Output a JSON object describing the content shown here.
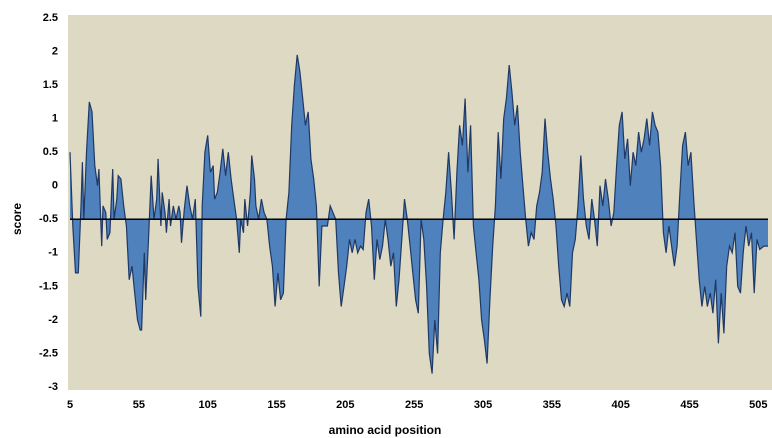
{
  "chart_data": {
    "type": "area",
    "xlabel": "amino acid position",
    "ylabel": "score",
    "baseline": -0.5,
    "color": "#4f81bd",
    "line_color": "#1f3864",
    "background": "#ddd9c3",
    "xlim": [
      5,
      512
    ],
    "xticks": [
      5,
      55,
      105,
      155,
      205,
      255,
      305,
      355,
      405,
      455,
      505
    ],
    "ylim": [
      -3,
      2.5
    ],
    "yticks": [
      -3,
      -2.5,
      -2,
      -1.5,
      -1,
      -0.5,
      0,
      0.5,
      1,
      1.5,
      2,
      2.5
    ],
    "x": [
      5,
      7,
      9,
      11,
      13,
      14,
      15,
      17,
      19,
      21,
      23,
      25,
      26,
      28,
      29,
      31,
      32,
      34,
      36,
      37,
      39,
      40,
      42,
      44,
      46,
      48,
      50,
      52,
      54,
      56,
      57,
      59,
      60,
      62,
      64,
      66,
      68,
      69,
      71,
      72,
      74,
      75,
      77,
      78,
      80,
      82,
      84,
      85,
      86,
      88,
      90,
      92,
      94,
      96,
      98,
      100,
      101,
      103,
      105,
      107,
      109,
      110,
      112,
      114,
      116,
      118,
      120,
      122,
      124,
      126,
      128,
      129,
      131,
      132,
      134,
      136,
      137,
      139,
      140,
      142,
      144,
      146,
      148,
      150,
      152,
      154,
      156,
      158,
      160,
      162,
      164,
      166,
      168,
      170,
      172,
      174,
      176,
      178,
      180,
      182,
      184,
      186,
      188,
      190,
      192,
      194,
      196,
      198,
      200,
      202,
      204,
      206,
      208,
      210,
      212,
      214,
      216,
      218,
      220,
      222,
      224,
      226,
      228,
      230,
      232,
      234,
      236,
      238,
      240,
      242,
      244,
      246,
      248,
      250,
      252,
      254,
      256,
      258,
      260,
      262,
      264,
      266,
      268,
      270,
      272,
      274,
      276,
      278,
      280,
      282,
      284,
      286,
      288,
      290,
      292,
      294,
      296,
      298,
      300,
      302,
      304,
      306,
      308,
      310,
      312,
      314,
      316,
      318,
      320,
      322,
      324,
      326,
      328,
      330,
      332,
      334,
      336,
      338,
      340,
      342,
      344,
      346,
      348,
      350,
      352,
      354,
      356,
      358,
      360,
      362,
      364,
      366,
      368,
      370,
      372,
      374,
      376,
      378,
      380,
      382,
      384,
      386,
      388,
      390,
      392,
      394,
      396,
      398,
      400,
      402,
      404,
      406,
      408,
      410,
      412,
      414,
      416,
      418,
      420,
      422,
      424,
      426,
      428,
      430,
      432,
      434,
      436,
      438,
      440,
      442,
      444,
      446,
      448,
      450,
      452,
      454,
      456,
      458,
      460,
      462,
      464,
      466,
      468,
      470,
      472,
      474,
      476,
      478,
      480,
      482,
      484,
      486,
      488,
      490,
      492,
      494,
      496,
      498,
      500,
      502,
      504,
      506,
      509,
      512
    ],
    "values": [
      0.5,
      -0.6,
      -1.3,
      -1.3,
      -0.3,
      0.35,
      -0.5,
      0.5,
      1.25,
      1.1,
      0.3,
      0.0,
      0.25,
      -0.9,
      -0.3,
      -0.4,
      -0.8,
      -0.7,
      0.25,
      -0.5,
      -0.2,
      0.15,
      0.1,
      -0.3,
      -0.6,
      -1.4,
      -1.2,
      -1.6,
      -2.0,
      -2.15,
      -2.15,
      -1.0,
      -1.7,
      -0.8,
      0.15,
      -0.5,
      -0.2,
      0.4,
      -0.6,
      -0.1,
      -0.4,
      -0.7,
      -0.2,
      -0.6,
      -0.3,
      -0.5,
      -0.3,
      -0.4,
      -0.85,
      -0.35,
      0.0,
      -0.3,
      -0.5,
      -0.2,
      -1.5,
      -1.95,
      -0.3,
      0.5,
      0.75,
      0.2,
      0.3,
      -0.2,
      -0.1,
      0.2,
      0.55,
      0.15,
      0.5,
      0.1,
      -0.2,
      -0.5,
      -1.0,
      -0.5,
      -0.7,
      -0.2,
      -0.6,
      -0.1,
      0.45,
      0.1,
      -0.3,
      -0.5,
      -0.2,
      -0.4,
      -0.5,
      -0.9,
      -1.2,
      -1.8,
      -1.3,
      -1.7,
      -1.6,
      -0.5,
      -0.1,
      0.9,
      1.5,
      1.95,
      1.7,
      1.3,
      0.9,
      1.1,
      0.4,
      0.1,
      -0.3,
      -1.5,
      -0.6,
      -0.6,
      -0.6,
      -0.3,
      -0.4,
      -0.5,
      -1.3,
      -1.8,
      -1.5,
      -1.2,
      -0.8,
      -1.0,
      -0.8,
      -1.0,
      -0.9,
      -0.95,
      -0.4,
      -0.2,
      -0.6,
      -1.4,
      -0.8,
      -1.1,
      -0.9,
      -0.5,
      -0.8,
      -1.2,
      -1.0,
      -1.8,
      -1.4,
      -0.8,
      -0.2,
      -0.5,
      -0.9,
      -1.3,
      -1.7,
      -1.9,
      -0.5,
      -0.8,
      -1.5,
      -2.5,
      -2.8,
      -2.0,
      -2.5,
      -1.0,
      -0.5,
      -0.1,
      0.5,
      -0.1,
      -0.8,
      0.2,
      0.9,
      0.6,
      1.3,
      0.2,
      0.9,
      -0.6,
      -1.0,
      -1.4,
      -2.0,
      -2.3,
      -2.65,
      -1.7,
      -0.9,
      -0.3,
      0.8,
      0.1,
      1.0,
      1.3,
      1.8,
      1.4,
      0.9,
      1.2,
      0.5,
      0.0,
      -0.5,
      -0.9,
      -0.7,
      -0.8,
      -0.3,
      -0.1,
      0.2,
      1.0,
      0.5,
      0.1,
      -0.2,
      -0.6,
      -1.2,
      -1.7,
      -1.8,
      -1.6,
      -1.8,
      -1.0,
      -0.8,
      -0.3,
      0.45,
      -0.2,
      -0.6,
      -0.8,
      -0.2,
      -0.5,
      -0.9,
      0.0,
      -0.3,
      0.1,
      -0.2,
      -0.6,
      -0.4,
      0.3,
      0.9,
      1.1,
      0.4,
      0.7,
      0.0,
      0.5,
      0.3,
      0.8,
      0.5,
      0.7,
      1.0,
      0.6,
      1.1,
      0.9,
      0.8,
      0.3,
      -0.7,
      -1.0,
      -0.6,
      -0.9,
      -1.2,
      -0.9,
      -0.1,
      0.6,
      0.8,
      0.3,
      0.5,
      -0.2,
      -0.8,
      -1.4,
      -1.8,
      -1.5,
      -1.8,
      -1.6,
      -1.9,
      -1.4,
      -2.35,
      -1.6,
      -2.2,
      -1.2,
      -0.9,
      -1.0,
      -0.7,
      -1.5,
      -1.6,
      -1.0,
      -0.6,
      -0.9,
      -0.7,
      -1.6,
      -0.8,
      -0.95,
      -0.9,
      -0.9
    ]
  }
}
